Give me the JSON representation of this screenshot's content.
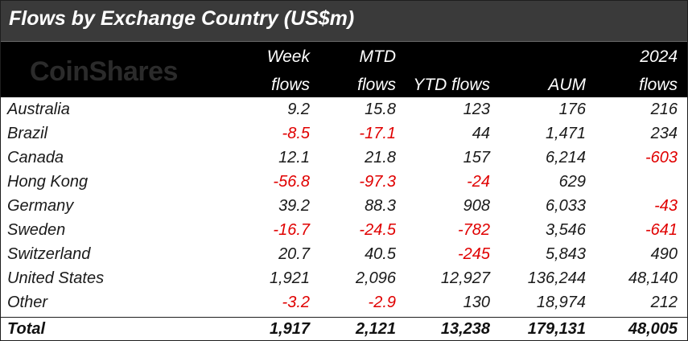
{
  "title": "Flows by Exchange Country (US$m)",
  "logo_text": "CoinShares",
  "header": {
    "week_line1": "Week",
    "week_line2": "flows",
    "mtd_line1": "MTD",
    "mtd_line2": "flows",
    "ytd": "YTD flows",
    "aum": "AUM",
    "y2024_line1": "2024",
    "y2024_line2": "flows"
  },
  "colors": {
    "header_bg": "#000000",
    "title_bg": "#3a3a3a",
    "negative": "#e00000"
  },
  "rows": [
    {
      "country": "Australia",
      "week": "9.2",
      "mtd": "15.8",
      "ytd": "123",
      "aum": "176",
      "y2024": "216"
    },
    {
      "country": "Brazil",
      "week": "-8.5",
      "mtd": "-17.1",
      "ytd": "44",
      "aum": "1,471",
      "y2024": "234"
    },
    {
      "country": "Canada",
      "week": "12.1",
      "mtd": "21.8",
      "ytd": "157",
      "aum": "6,214",
      "y2024": "-603"
    },
    {
      "country": "Hong Kong",
      "week": "-56.8",
      "mtd": "-97.3",
      "ytd": "-24",
      "aum": "629",
      "y2024": ""
    },
    {
      "country": "Germany",
      "week": "39.2",
      "mtd": "88.3",
      "ytd": "908",
      "aum": "6,033",
      "y2024": "-43"
    },
    {
      "country": "Sweden",
      "week": "-16.7",
      "mtd": "-24.5",
      "ytd": "-782",
      "aum": "3,546",
      "y2024": "-641"
    },
    {
      "country": "Switzerland",
      "week": "20.7",
      "mtd": "40.5",
      "ytd": "-245",
      "aum": "5,843",
      "y2024": "490"
    },
    {
      "country": "United States",
      "week": "1,921",
      "mtd": "2,096",
      "ytd": "12,927",
      "aum": "136,244",
      "y2024": "48,140"
    },
    {
      "country": "Other",
      "week": "-3.2",
      "mtd": "-2.9",
      "ytd": "130",
      "aum": "18,974",
      "y2024": "212"
    }
  ],
  "total": {
    "country": "Total",
    "week": "1,917",
    "mtd": "2,121",
    "ytd": "13,238",
    "aum": "179,131",
    "y2024": "48,005"
  }
}
